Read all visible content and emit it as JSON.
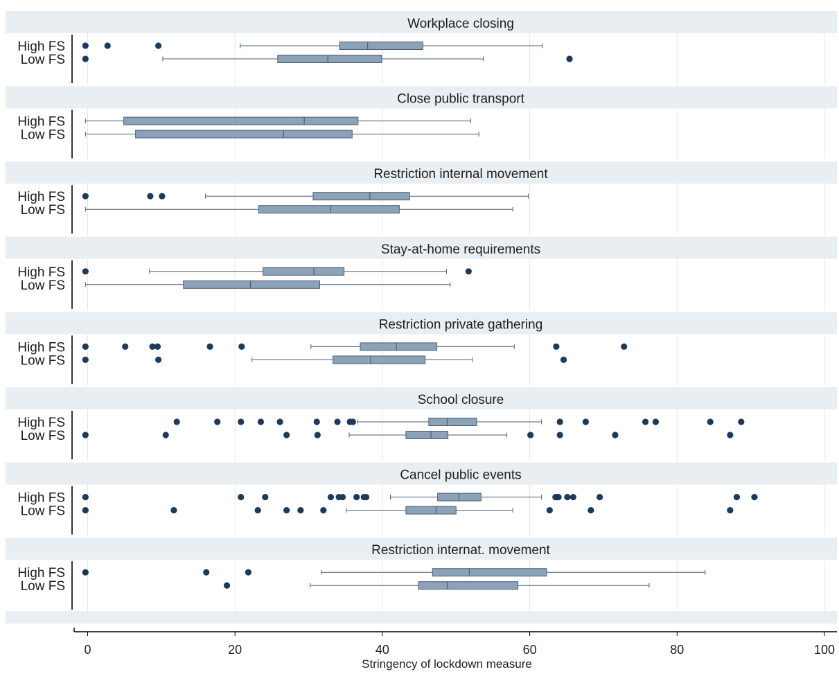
{
  "chart_data": {
    "type": "box",
    "xlabel": "Stringency of lockdown measure",
    "xlim": [
      -2,
      101
    ],
    "xticks": [
      0,
      20,
      40,
      60,
      80,
      100
    ],
    "grid": true,
    "colors": {
      "panel_header": "#e8eef2",
      "plot_bg": "#ffffff",
      "box_fill": "#8ca2b8",
      "box_stroke": "#4a5e73",
      "whisker": "#4a5e73",
      "outlier": "#1c3a5a",
      "grid": "#e6e6e6",
      "axis": "#000000"
    },
    "groups": [
      "High FS",
      "Low FS"
    ],
    "panels": [
      {
        "title": "Workplace closing",
        "boxes": [
          {
            "group": "High FS",
            "whisker_low": 20.7,
            "q1": 34.2,
            "median": 38.0,
            "q3": 45.5,
            "whisker_high": 61.7,
            "outliers": [
              -0.3,
              2.7,
              9.6
            ]
          },
          {
            "group": "Low FS",
            "whisker_low": 10.2,
            "q1": 25.8,
            "median": 32.6,
            "q3": 39.9,
            "whisker_high": 53.7,
            "outliers": [
              -0.3,
              65.4
            ]
          }
        ]
      },
      {
        "title": "Close public transport",
        "boxes": [
          {
            "group": "High FS",
            "whisker_low": -0.3,
            "q1": 4.9,
            "median": 29.4,
            "q3": 36.7,
            "whisker_high": 52.0,
            "outliers": []
          },
          {
            "group": "Low FS",
            "whisker_low": -0.3,
            "q1": 6.5,
            "median": 26.6,
            "q3": 35.9,
            "whisker_high": 53.1,
            "outliers": []
          }
        ]
      },
      {
        "title": "Restriction internal movement",
        "boxes": [
          {
            "group": "High FS",
            "whisker_low": 16.0,
            "q1": 30.6,
            "median": 38.3,
            "q3": 43.7,
            "whisker_high": 59.8,
            "outliers": [
              -0.3,
              8.5,
              10.1
            ]
          },
          {
            "group": "Low FS",
            "whisker_low": -0.3,
            "q1": 23.2,
            "median": 33.0,
            "q3": 42.3,
            "whisker_high": 57.7,
            "outliers": []
          }
        ]
      },
      {
        "title": "Stay-at-home requirements",
        "boxes": [
          {
            "group": "High FS",
            "whisker_low": 8.4,
            "q1": 23.8,
            "median": 30.7,
            "q3": 34.8,
            "whisker_high": 48.7,
            "outliers": [
              -0.3,
              51.7
            ]
          },
          {
            "group": "Low FS",
            "whisker_low": -0.3,
            "q1": 13.0,
            "median": 22.1,
            "q3": 31.5,
            "whisker_high": 49.2,
            "outliers": []
          }
        ]
      },
      {
        "title": "Restriction private gathering",
        "boxes": [
          {
            "group": "High FS",
            "whisker_low": 30.3,
            "q1": 37.0,
            "median": 41.9,
            "q3": 47.4,
            "whisker_high": 57.9,
            "outliers": [
              -0.3,
              5.1,
              8.8,
              9.5,
              16.6,
              20.9,
              63.6,
              72.8
            ]
          },
          {
            "group": "Low FS",
            "whisker_low": 22.3,
            "q1": 33.3,
            "median": 38.4,
            "q3": 45.8,
            "whisker_high": 52.2,
            "outliers": [
              -0.3,
              9.6,
              64.6
            ]
          }
        ]
      },
      {
        "title": "School closure",
        "boxes": [
          {
            "group": "High FS",
            "whisker_low": 36.6,
            "q1": 46.3,
            "median": 48.8,
            "q3": 52.8,
            "whisker_high": 61.6,
            "outliers": [
              12.1,
              17.6,
              20.8,
              23.5,
              26.1,
              31.1,
              33.9,
              35.6,
              36.0,
              64.1,
              67.6,
              75.7,
              77.1,
              84.5,
              88.7
            ]
          },
          {
            "group": "Low FS",
            "whisker_low": 35.5,
            "q1": 43.2,
            "median": 46.6,
            "q3": 48.9,
            "whisker_high": 56.9,
            "outliers": [
              -0.3,
              10.6,
              27.0,
              31.2,
              60.1,
              64.1,
              71.6,
              87.2
            ]
          }
        ]
      },
      {
        "title": "Cancel public events",
        "boxes": [
          {
            "group": "High FS",
            "whisker_low": 41.1,
            "q1": 47.5,
            "median": 50.4,
            "q3": 53.4,
            "whisker_high": 61.6,
            "outliers": [
              -0.3,
              20.8,
              24.1,
              33.0,
              34.1,
              34.6,
              36.5,
              37.5,
              37.8,
              63.5,
              63.7,
              63.9,
              65.1,
              65.9,
              69.5,
              88.1,
              90.5
            ]
          },
          {
            "group": "Low FS",
            "whisker_low": 35.1,
            "q1": 43.2,
            "median": 47.3,
            "q3": 50.0,
            "whisker_high": 57.7,
            "outliers": [
              -0.3,
              11.7,
              23.1,
              27.0,
              28.9,
              32.0,
              62.7,
              68.3,
              87.2
            ]
          }
        ]
      },
      {
        "title": "Restriction internat. movement",
        "boxes": [
          {
            "group": "High FS",
            "whisker_low": 31.7,
            "q1": 46.8,
            "median": 51.8,
            "q3": 62.3,
            "whisker_high": 83.8,
            "outliers": [
              -0.3,
              16.1,
              21.8
            ]
          },
          {
            "group": "Low FS",
            "whisker_low": 30.2,
            "q1": 44.9,
            "median": 48.8,
            "q3": 58.4,
            "whisker_high": 76.2,
            "outliers": [
              18.9
            ]
          }
        ]
      }
    ]
  }
}
